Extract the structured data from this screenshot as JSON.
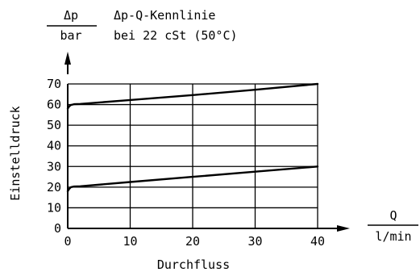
{
  "chart_data": {
    "type": "line",
    "title": "Δp-Q-Kennlinie",
    "subtitle": "bei 22 cSt (50°C)",
    "y_unit_numerator": "Δp",
    "y_unit_denominator": "bar",
    "x_unit_numerator": "Q",
    "x_unit_denominator": "l/min",
    "ylabel": "Einstelldruck",
    "xlabel": "Durchfluss",
    "xlim": [
      0,
      40
    ],
    "ylim": [
      0,
      70
    ],
    "x_ticks": [
      "0",
      "10",
      "20",
      "30",
      "40"
    ],
    "y_ticks": [
      "0",
      "10",
      "20",
      "30",
      "40",
      "50",
      "60",
      "70"
    ],
    "grid": true,
    "series": [
      {
        "x": [
          0,
          0.2,
          0.5,
          1,
          2,
          10,
          20,
          30,
          40
        ],
        "values": [
          18,
          19,
          20,
          20.3,
          20.4,
          22.5,
          25,
          27.5,
          30
        ]
      },
      {
        "x": [
          0,
          0.2,
          0.5,
          1,
          2,
          10,
          20,
          30,
          40
        ],
        "values": [
          58,
          59,
          59.8,
          60.2,
          60.3,
          62.2,
          64.6,
          67.2,
          70
        ]
      }
    ]
  }
}
